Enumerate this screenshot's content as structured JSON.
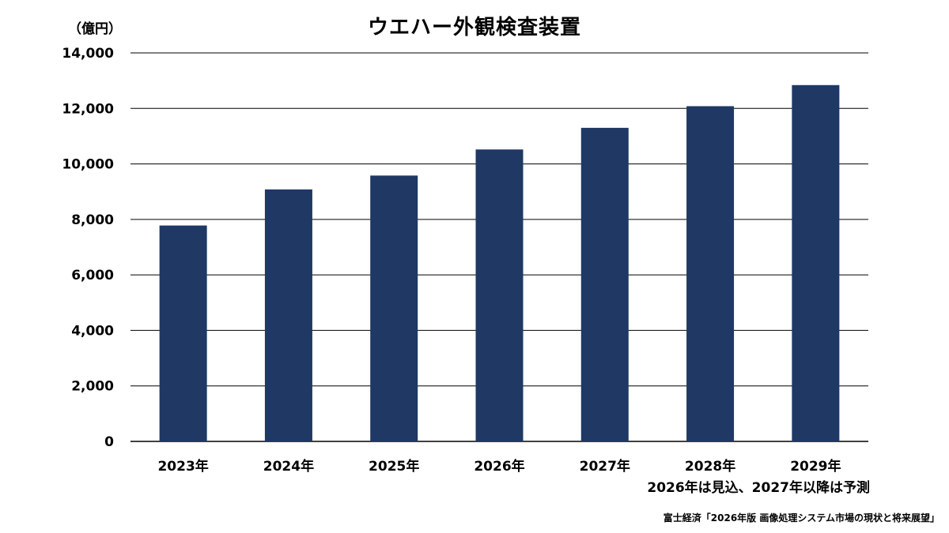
{
  "chart_data": {
    "type": "bar",
    "title": "ウエハー外観検査装置",
    "unit_label": "（億円）",
    "categories": [
      "2023年",
      "2024年",
      "2025年",
      "2026年",
      "2027年",
      "2028年",
      "2029年"
    ],
    "values": [
      7780,
      9080,
      9580,
      10520,
      11300,
      12080,
      12840
    ],
    "ylim": [
      0,
      14000
    ],
    "yticks": [
      "0",
      "2,000",
      "4,000",
      "6,000",
      "8,000",
      "10,000",
      "12,000",
      "14,000"
    ],
    "ytick_values": [
      0,
      2000,
      4000,
      6000,
      8000,
      10000,
      12000,
      14000
    ],
    "grid": true,
    "bar_color": "#1f3864",
    "note": "2026年は見込、2027年以降は予測",
    "source": "富士経済「2026年版 画像処理システム市場の現状と将来展望」"
  }
}
